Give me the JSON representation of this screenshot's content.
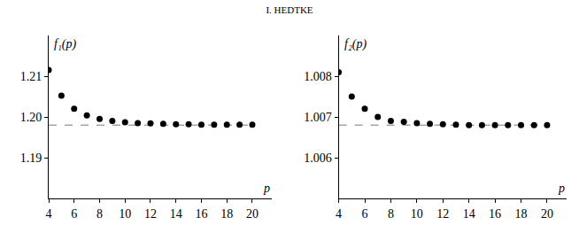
{
  "header": "I. HEDTKE",
  "chart_data": [
    {
      "type": "scatter",
      "y_label": "f₁(p)",
      "x_label": "p",
      "x": [
        4,
        5,
        6,
        7,
        8,
        9,
        10,
        11,
        12,
        13,
        14,
        15,
        16,
        17,
        18,
        19,
        20
      ],
      "values": [
        1.2115,
        1.2052,
        1.202,
        1.2004,
        1.1995,
        1.199,
        1.1987,
        1.1985,
        1.1984,
        1.1983,
        1.1982,
        1.1982,
        1.1981,
        1.1981,
        1.1981,
        1.1981,
        1.1981
      ],
      "asymptote": 1.198,
      "color": "#000000",
      "marker": "circle",
      "line_style": "dashed",
      "grid": false,
      "xlim": [
        4,
        21.5
      ],
      "xticks": [
        4,
        6,
        8,
        10,
        12,
        14,
        16,
        18,
        20
      ],
      "ylim": [
        1.18,
        1.22
      ],
      "yticks": [
        1.19,
        1.2,
        1.21
      ],
      "yticklabels": [
        {
          "value": 1.19,
          "label": "1.19"
        },
        {
          "value": 1.2,
          "label": "1.20"
        },
        {
          "value": 1.21,
          "label": "1.21"
        }
      ]
    },
    {
      "type": "scatter",
      "y_label": "f₂(p)",
      "x_label": "p",
      "x": [
        4,
        5,
        6,
        7,
        8,
        9,
        10,
        11,
        12,
        13,
        14,
        15,
        16,
        17,
        18,
        19,
        20
      ],
      "values": [
        1.0081,
        1.0075,
        1.0072,
        1.007,
        1.0069,
        1.00688,
        1.00685,
        1.00683,
        1.00682,
        1.00681,
        1.0068,
        1.0068,
        1.0068,
        1.0068,
        1.0068,
        1.0068,
        1.0068
      ],
      "asymptote": 1.0068,
      "color": "#000000",
      "marker": "circle",
      "line_style": "dashed",
      "grid": false,
      "xlim": [
        4,
        21.5
      ],
      "xticks": [
        4,
        6,
        8,
        10,
        12,
        14,
        16,
        18,
        20
      ],
      "ylim": [
        1.005,
        1.009
      ],
      "yticks": [
        1.006,
        1.007,
        1.008
      ]
    }
  ]
}
